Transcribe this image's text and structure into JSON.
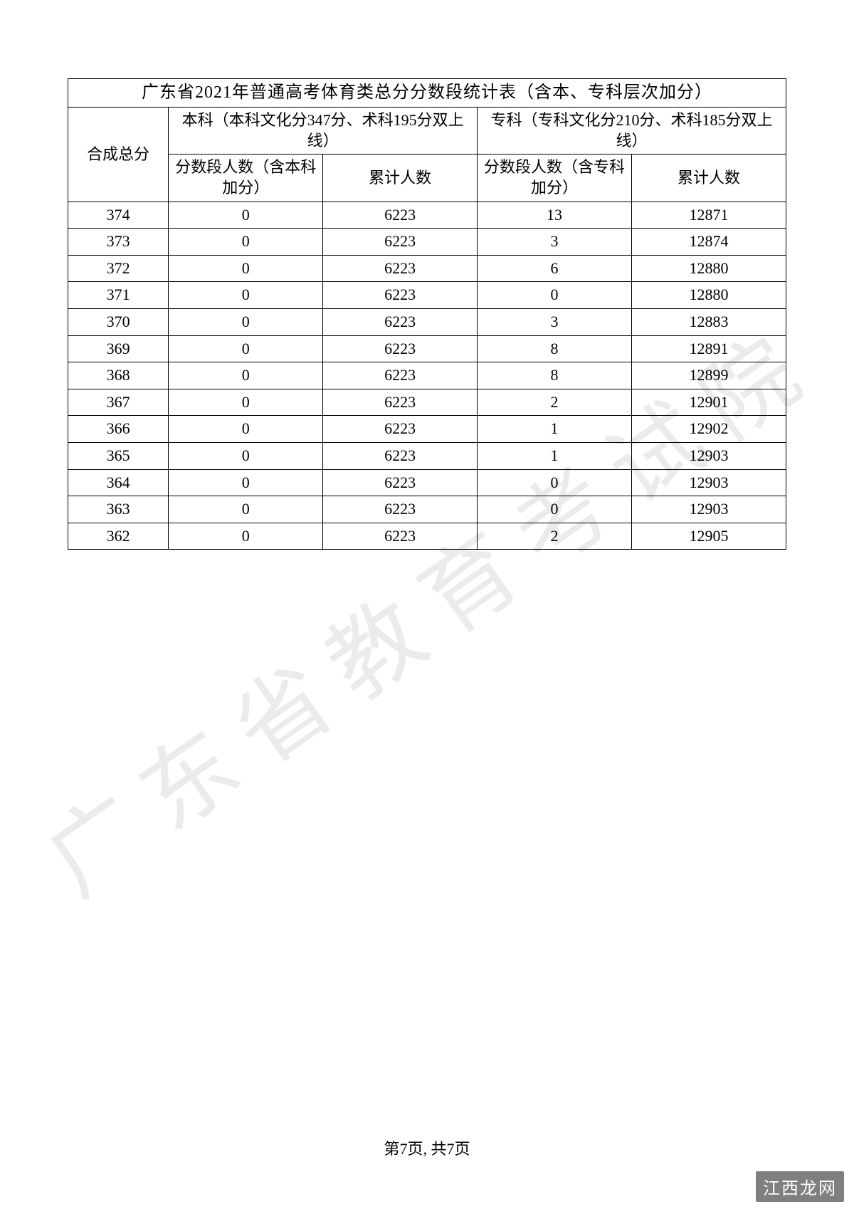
{
  "watermark_text": "广东省教育考试院",
  "site_watermark": "江西龙网",
  "footer": "第7页, 共7页",
  "table": {
    "title": "广东省2021年普通高考体育类总分分数段统计表（含本、专科层次加分）",
    "row_header": "合成总分",
    "group_bk": "本科（本科文化分347分、术科195分双上线）",
    "group_zk": "专科（专科文化分210分、术科185分双上线）",
    "sub_bk_count": "分数段人数（含本科加分）",
    "sub_bk_acc": "累计人数",
    "sub_zk_count": "分数段人数（含专科加分）",
    "sub_zk_acc": "累计人数",
    "rows": [
      {
        "score": "374",
        "bk_count": "0",
        "bk_acc": "6223",
        "zk_count": "13",
        "zk_acc": "12871"
      },
      {
        "score": "373",
        "bk_count": "0",
        "bk_acc": "6223",
        "zk_count": "3",
        "zk_acc": "12874"
      },
      {
        "score": "372",
        "bk_count": "0",
        "bk_acc": "6223",
        "zk_count": "6",
        "zk_acc": "12880"
      },
      {
        "score": "371",
        "bk_count": "0",
        "bk_acc": "6223",
        "zk_count": "0",
        "zk_acc": "12880"
      },
      {
        "score": "370",
        "bk_count": "0",
        "bk_acc": "6223",
        "zk_count": "3",
        "zk_acc": "12883"
      },
      {
        "score": "369",
        "bk_count": "0",
        "bk_acc": "6223",
        "zk_count": "8",
        "zk_acc": "12891"
      },
      {
        "score": "368",
        "bk_count": "0",
        "bk_acc": "6223",
        "zk_count": "8",
        "zk_acc": "12899"
      },
      {
        "score": "367",
        "bk_count": "0",
        "bk_acc": "6223",
        "zk_count": "2",
        "zk_acc": "12901"
      },
      {
        "score": "366",
        "bk_count": "0",
        "bk_acc": "6223",
        "zk_count": "1",
        "zk_acc": "12902"
      },
      {
        "score": "365",
        "bk_count": "0",
        "bk_acc": "6223",
        "zk_count": "1",
        "zk_acc": "12903"
      },
      {
        "score": "364",
        "bk_count": "0",
        "bk_acc": "6223",
        "zk_count": "0",
        "zk_acc": "12903"
      },
      {
        "score": "363",
        "bk_count": "0",
        "bk_acc": "6223",
        "zk_count": "0",
        "zk_acc": "12903"
      },
      {
        "score": "362",
        "bk_count": "0",
        "bk_acc": "6223",
        "zk_count": "2",
        "zk_acc": "12905"
      }
    ]
  }
}
